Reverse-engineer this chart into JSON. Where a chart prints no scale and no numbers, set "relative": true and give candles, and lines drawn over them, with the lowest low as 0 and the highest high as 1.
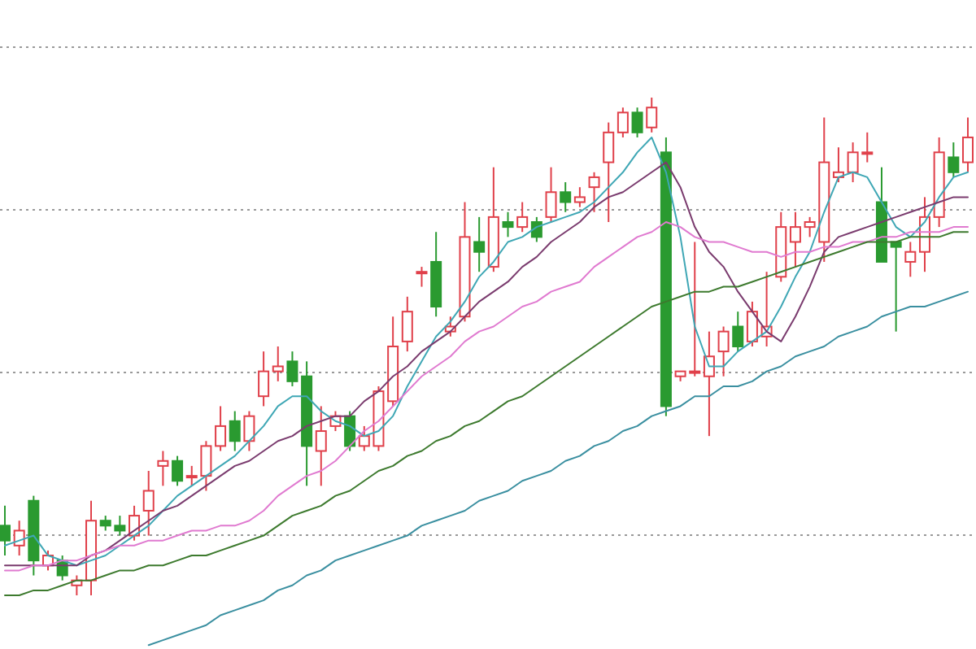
{
  "chart_data": {
    "type": "candlestick",
    "relative": true,
    "grid": "y",
    "categories": [
      null,
      null,
      null,
      null,
      null,
      null,
      null,
      null,
      null,
      null,
      null,
      null,
      null,
      null,
      null,
      null,
      null,
      null,
      null,
      null,
      null,
      null,
      null,
      null,
      null,
      null,
      null,
      null,
      null,
      null,
      null,
      null,
      null,
      null,
      null,
      null,
      null,
      null,
      null,
      null,
      null,
      null,
      null,
      null,
      null,
      null,
      null,
      null,
      null,
      null,
      null,
      null,
      null,
      null,
      null,
      null,
      null,
      null,
      null,
      null,
      null,
      null,
      null,
      null,
      null,
      null,
      null,
      null
    ],
    "ohlc": [
      [
        0.14,
        0.18,
        0.08,
        0.11
      ],
      [
        0.1,
        0.15,
        0.08,
        0.13
      ],
      [
        0.19,
        0.2,
        0.04,
        0.07
      ],
      [
        0.06,
        0.09,
        0.05,
        0.08
      ],
      [
        0.07,
        0.08,
        0.03,
        0.04
      ],
      [
        0.02,
        0.04,
        0.0,
        0.03
      ],
      [
        0.03,
        0.19,
        0.0,
        0.15
      ],
      [
        0.15,
        0.16,
        0.13,
        0.14
      ],
      [
        0.14,
        0.16,
        0.12,
        0.13
      ],
      [
        0.12,
        0.18,
        0.11,
        0.16
      ],
      [
        0.17,
        0.25,
        0.12,
        0.21
      ],
      [
        0.26,
        0.29,
        0.22,
        0.27
      ],
      [
        0.27,
        0.28,
        0.22,
        0.23
      ],
      [
        0.24,
        0.26,
        0.22,
        0.24
      ],
      [
        0.24,
        0.31,
        0.21,
        0.3
      ],
      [
        0.3,
        0.38,
        0.29,
        0.34
      ],
      [
        0.35,
        0.37,
        0.29,
        0.31
      ],
      [
        0.31,
        0.37,
        0.29,
        0.36
      ],
      [
        0.4,
        0.49,
        0.38,
        0.45
      ],
      [
        0.45,
        0.5,
        0.43,
        0.46
      ],
      [
        0.47,
        0.49,
        0.42,
        0.43
      ],
      [
        0.44,
        0.47,
        0.22,
        0.3
      ],
      [
        0.29,
        0.38,
        0.22,
        0.33
      ],
      [
        0.34,
        0.37,
        0.33,
        0.36
      ],
      [
        0.36,
        0.37,
        0.29,
        0.3
      ],
      [
        0.3,
        0.34,
        0.29,
        0.32
      ],
      [
        0.3,
        0.42,
        0.29,
        0.41
      ],
      [
        0.39,
        0.56,
        0.38,
        0.5
      ],
      [
        0.51,
        0.6,
        0.49,
        0.57
      ],
      [
        0.65,
        0.66,
        0.62,
        0.65
      ],
      [
        0.67,
        0.73,
        0.56,
        0.58
      ],
      [
        0.53,
        0.56,
        0.52,
        0.54
      ],
      [
        0.56,
        0.79,
        0.55,
        0.72
      ],
      [
        0.71,
        0.76,
        0.65,
        0.69
      ],
      [
        0.66,
        0.86,
        0.65,
        0.76
      ],
      [
        0.75,
        0.77,
        0.72,
        0.74
      ],
      [
        0.74,
        0.79,
        0.73,
        0.76
      ],
      [
        0.75,
        0.76,
        0.71,
        0.72
      ],
      [
        0.76,
        0.86,
        0.75,
        0.81
      ],
      [
        0.81,
        0.83,
        0.77,
        0.79
      ],
      [
        0.79,
        0.82,
        0.78,
        0.8
      ],
      [
        0.82,
        0.85,
        0.77,
        0.84
      ],
      [
        0.87,
        0.95,
        0.75,
        0.93
      ],
      [
        0.93,
        0.98,
        0.92,
        0.97
      ],
      [
        0.97,
        0.98,
        0.92,
        0.93
      ],
      [
        0.94,
        1.0,
        0.93,
        0.98
      ],
      [
        0.89,
        0.92,
        0.36,
        0.38
      ],
      [
        0.44,
        0.45,
        0.43,
        0.45
      ],
      [
        0.45,
        0.71,
        0.44,
        0.45
      ],
      [
        0.44,
        0.53,
        0.32,
        0.48
      ],
      [
        0.49,
        0.54,
        0.44,
        0.53
      ],
      [
        0.54,
        0.57,
        0.49,
        0.5
      ],
      [
        0.51,
        0.59,
        0.5,
        0.57
      ],
      [
        0.52,
        0.65,
        0.5,
        0.54
      ],
      [
        0.64,
        0.77,
        0.63,
        0.74
      ],
      [
        0.71,
        0.77,
        0.66,
        0.74
      ],
      [
        0.74,
        0.76,
        0.72,
        0.75
      ],
      [
        0.71,
        0.96,
        0.67,
        0.87
      ],
      [
        0.84,
        0.9,
        0.83,
        0.85
      ],
      [
        0.85,
        0.91,
        0.83,
        0.89
      ],
      [
        0.89,
        0.93,
        0.87,
        0.89
      ],
      [
        0.79,
        0.86,
        0.67,
        0.67
      ],
      [
        0.71,
        0.71,
        0.53,
        0.7
      ],
      [
        0.67,
        0.71,
        0.64,
        0.69
      ],
      [
        0.69,
        0.8,
        0.65,
        0.76
      ],
      [
        0.76,
        0.92,
        0.74,
        0.89
      ],
      [
        0.88,
        0.91,
        0.84,
        0.85
      ],
      [
        0.87,
        0.96,
        0.85,
        0.92
      ]
    ],
    "series": [
      {
        "type": "line",
        "color": "#3fa7b5",
        "values": [
          0.1,
          0.11,
          0.12,
          0.08,
          0.07,
          0.06,
          0.07,
          0.08,
          0.1,
          0.12,
          0.14,
          0.17,
          0.2,
          0.22,
          0.24,
          0.26,
          0.28,
          0.31,
          0.34,
          0.38,
          0.4,
          0.4,
          0.37,
          0.35,
          0.34,
          0.32,
          0.33,
          0.36,
          0.42,
          0.47,
          0.52,
          0.55,
          0.59,
          0.64,
          0.67,
          0.71,
          0.72,
          0.74,
          0.75,
          0.76,
          0.77,
          0.79,
          0.82,
          0.85,
          0.89,
          0.92,
          0.85,
          0.72,
          0.54,
          0.46,
          0.46,
          0.49,
          0.51,
          0.53,
          0.58,
          0.64,
          0.69,
          0.77,
          0.84,
          0.85,
          0.84,
          0.79,
          0.74,
          0.72,
          0.75,
          0.8,
          0.84,
          0.85
        ]
      },
      {
        "type": "line",
        "color": "#7a3b6e",
        "values": [
          0.06,
          0.06,
          0.06,
          0.06,
          0.06,
          0.06,
          0.08,
          0.09,
          0.11,
          0.13,
          0.15,
          0.17,
          0.18,
          0.2,
          0.22,
          0.24,
          0.26,
          0.27,
          0.29,
          0.31,
          0.32,
          0.34,
          0.35,
          0.36,
          0.36,
          0.39,
          0.41,
          0.44,
          0.46,
          0.49,
          0.51,
          0.53,
          0.56,
          0.59,
          0.61,
          0.63,
          0.66,
          0.68,
          0.71,
          0.73,
          0.75,
          0.78,
          0.8,
          0.81,
          0.83,
          0.85,
          0.87,
          0.82,
          0.74,
          0.69,
          0.66,
          0.61,
          0.57,
          0.53,
          0.51,
          0.56,
          0.62,
          0.69,
          0.72,
          0.73,
          0.74,
          0.75,
          0.76,
          0.77,
          0.78,
          0.79,
          0.8,
          0.8
        ]
      },
      {
        "type": "line",
        "color": "#e07ad0",
        "values": [
          0.05,
          0.05,
          0.06,
          0.06,
          0.07,
          0.07,
          0.08,
          0.09,
          0.1,
          0.1,
          0.11,
          0.11,
          0.12,
          0.13,
          0.13,
          0.14,
          0.14,
          0.15,
          0.17,
          0.2,
          0.22,
          0.24,
          0.25,
          0.27,
          0.3,
          0.33,
          0.35,
          0.38,
          0.41,
          0.44,
          0.46,
          0.48,
          0.51,
          0.53,
          0.54,
          0.56,
          0.58,
          0.59,
          0.61,
          0.62,
          0.63,
          0.66,
          0.68,
          0.7,
          0.72,
          0.73,
          0.75,
          0.74,
          0.72,
          0.71,
          0.71,
          0.7,
          0.69,
          0.69,
          0.68,
          0.69,
          0.69,
          0.7,
          0.7,
          0.71,
          0.71,
          0.72,
          0.72,
          0.73,
          0.73,
          0.73,
          0.74,
          0.74
        ]
      },
      {
        "type": "line",
        "color": "#3d7a2e",
        "values": [
          0.0,
          0.0,
          0.01,
          0.01,
          0.02,
          0.03,
          0.03,
          0.04,
          0.05,
          0.05,
          0.06,
          0.06,
          0.07,
          0.08,
          0.08,
          0.09,
          0.1,
          0.11,
          0.12,
          0.14,
          0.16,
          0.17,
          0.18,
          0.2,
          0.21,
          0.23,
          0.25,
          0.26,
          0.28,
          0.29,
          0.31,
          0.32,
          0.34,
          0.35,
          0.37,
          0.39,
          0.4,
          0.42,
          0.44,
          0.46,
          0.48,
          0.5,
          0.52,
          0.54,
          0.56,
          0.58,
          0.59,
          0.6,
          0.61,
          0.61,
          0.62,
          0.62,
          0.63,
          0.64,
          0.65,
          0.66,
          0.67,
          0.68,
          0.69,
          0.7,
          0.71,
          0.71,
          0.71,
          0.72,
          0.72,
          0.72,
          0.73,
          0.73
        ]
      },
      {
        "type": "line",
        "color": "#3a8fa0",
        "values": [
          null,
          null,
          null,
          null,
          null,
          null,
          null,
          null,
          null,
          null,
          -0.1,
          -0.09,
          -0.08,
          -0.07,
          -0.06,
          -0.04,
          -0.03,
          -0.02,
          -0.01,
          0.01,
          0.02,
          0.04,
          0.05,
          0.07,
          0.08,
          0.09,
          0.1,
          0.11,
          0.12,
          0.14,
          0.15,
          0.16,
          0.17,
          0.19,
          0.2,
          0.21,
          0.23,
          0.24,
          0.25,
          0.27,
          0.28,
          0.3,
          0.31,
          0.33,
          0.34,
          0.36,
          0.37,
          0.38,
          0.4,
          0.4,
          0.42,
          0.42,
          0.43,
          0.45,
          0.46,
          0.48,
          0.49,
          0.5,
          0.52,
          0.53,
          0.54,
          0.56,
          0.57,
          0.58,
          0.58,
          0.59,
          0.6,
          0.61
        ]
      }
    ]
  }
}
